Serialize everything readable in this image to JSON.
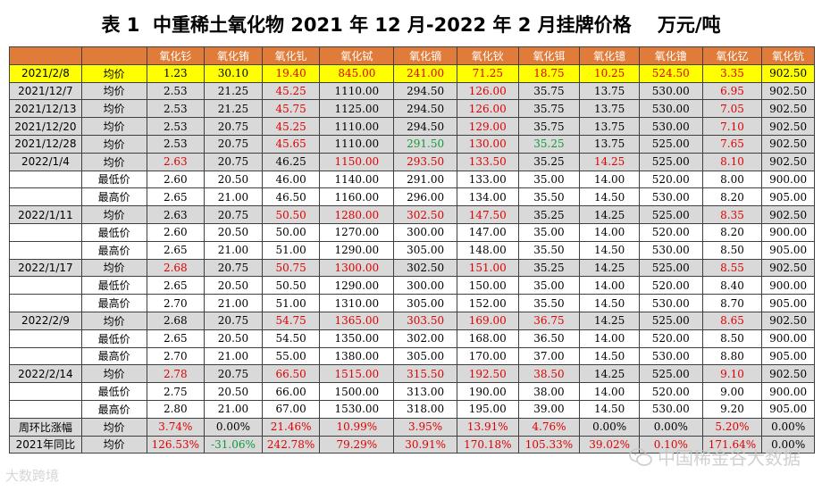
{
  "title": "表 1  中重稀土氧化物 2021 年 12 月-2022 年 2 月挂牌价格    万元/吨",
  "header": [
    "",
    "",
    "氧化钐",
    "氧化铕",
    "氧化钆",
    "氧化铽",
    "氧化镝",
    "氧化钬",
    "氧化铒",
    "氧化镱",
    "氧化镥",
    "氧化钇",
    "氧化钪"
  ],
  "rows": [
    {
      "style": "hl",
      "cells": [
        "2021/2/8",
        "均价",
        "1.23",
        "30.10",
        "19.40",
        "845.00",
        "241.00",
        "71.25",
        "18.75",
        "10.25",
        "524.50",
        "3.35",
        "902.50"
      ],
      "colors": [
        "",
        "",
        "",
        "",
        "up",
        "up",
        "up",
        "up",
        "up",
        "up",
        "up",
        "up",
        ""
      ]
    },
    {
      "style": "gray",
      "cells": [
        "2021/12/7",
        "均价",
        "2.53",
        "21.25",
        "45.25",
        "1110.00",
        "294.50",
        "126.00",
        "35.75",
        "13.75",
        "530.00",
        "6.95",
        "902.50"
      ],
      "colors": [
        "",
        "",
        "",
        "",
        "up",
        "",
        "",
        "up",
        "",
        "",
        "",
        "up",
        ""
      ]
    },
    {
      "style": "gray",
      "cells": [
        "2021/12/13",
        "均价",
        "2.53",
        "21.25",
        "45.75",
        "1125.00",
        "294.50",
        "126.00",
        "35.75",
        "13.75",
        "530.00",
        "7.05",
        "902.50"
      ],
      "colors": [
        "",
        "",
        "",
        "",
        "up",
        "",
        "",
        "up",
        "",
        "",
        "",
        "up",
        ""
      ]
    },
    {
      "style": "gray",
      "cells": [
        "2021/12/20",
        "均价",
        "2.53",
        "20.75",
        "45.25",
        "1110.00",
        "294.50",
        "129.00",
        "35.75",
        "13.75",
        "530.00",
        "7.10",
        "902.50"
      ],
      "colors": [
        "",
        "",
        "",
        "",
        "up",
        "",
        "",
        "up",
        "",
        "",
        "",
        "up",
        ""
      ]
    },
    {
      "style": "gray",
      "cells": [
        "2021/12/28",
        "均价",
        "2.53",
        "20.75",
        "45.65",
        "1110.00",
        "291.50",
        "130.00",
        "35.25",
        "13.75",
        "525.00",
        "7.65",
        "902.50"
      ],
      "colors": [
        "",
        "",
        "",
        "",
        "up",
        "",
        "down",
        "up",
        "down",
        "",
        "",
        "up",
        ""
      ]
    },
    {
      "style": "gray",
      "cells": [
        "2022/1/4",
        "均价",
        "2.63",
        "20.75",
        "46.25",
        "1150.00",
        "293.50",
        "133.50",
        "35.25",
        "14.25",
        "525.00",
        "8.10",
        "902.50"
      ],
      "colors": [
        "",
        "",
        "up",
        "",
        "",
        "up",
        "up",
        "up",
        "",
        "up",
        "",
        "up",
        ""
      ]
    },
    {
      "style": "white",
      "cells": [
        "",
        "最低价",
        "2.60",
        "20.50",
        "46.00",
        "1140.00",
        "291.00",
        "133.00",
        "35.00",
        "14.00",
        "520.00",
        "8.00",
        "900.00"
      ],
      "colors": [
        "",
        "",
        "",
        "",
        "",
        "",
        "",
        "",
        "",
        "",
        "",
        "",
        ""
      ]
    },
    {
      "style": "white",
      "cells": [
        "",
        "最高价",
        "2.65",
        "21.00",
        "46.50",
        "1160.00",
        "296.00",
        "134.00",
        "35.50",
        "14.50",
        "530.00",
        "8.20",
        "905.00"
      ],
      "colors": [
        "",
        "",
        "",
        "",
        "",
        "",
        "",
        "",
        "",
        "",
        "",
        "",
        ""
      ]
    },
    {
      "style": "gray",
      "cells": [
        "2022/1/11",
        "均价",
        "2.63",
        "20.75",
        "50.50",
        "1280.00",
        "302.50",
        "147.50",
        "35.25",
        "14.25",
        "525.00",
        "8.35",
        "902.50"
      ],
      "colors": [
        "",
        "",
        "",
        "",
        "up",
        "up",
        "up",
        "up",
        "",
        "",
        "",
        "up",
        ""
      ]
    },
    {
      "style": "white",
      "cells": [
        "",
        "最低价",
        "2.60",
        "20.50",
        "50.00",
        "1270.00",
        "300.00",
        "147.00",
        "35.00",
        "14.00",
        "520.00",
        "8.20",
        "900.00"
      ],
      "colors": [
        "",
        "",
        "",
        "",
        "",
        "",
        "",
        "",
        "",
        "",
        "",
        "",
        ""
      ]
    },
    {
      "style": "white",
      "cells": [
        "",
        "最高价",
        "2.65",
        "21.00",
        "51.00",
        "1290.00",
        "305.00",
        "148.00",
        "35.50",
        "14.50",
        "530.00",
        "8.50",
        "905.00"
      ],
      "colors": [
        "",
        "",
        "",
        "",
        "",
        "",
        "",
        "",
        "",
        "",
        "",
        "",
        ""
      ]
    },
    {
      "style": "gray",
      "cells": [
        "2022/1/17",
        "均价",
        "2.68",
        "20.75",
        "50.75",
        "1300.00",
        "302.50",
        "151.00",
        "35.25",
        "14.25",
        "525.00",
        "8.55",
        "902.50"
      ],
      "colors": [
        "",
        "",
        "up",
        "",
        "up",
        "up",
        "",
        "up",
        "",
        "",
        "",
        "up",
        ""
      ]
    },
    {
      "style": "white",
      "cells": [
        "",
        "最低价",
        "2.65",
        "20.50",
        "50.50",
        "1290.00",
        "300.00",
        "150.00",
        "35.00",
        "14.00",
        "520.00",
        "8.40",
        "900.00"
      ],
      "colors": [
        "",
        "",
        "",
        "",
        "",
        "",
        "",
        "",
        "",
        "",
        "",
        "",
        ""
      ]
    },
    {
      "style": "white",
      "cells": [
        "",
        "最高价",
        "2.70",
        "21.00",
        "51.00",
        "1310.00",
        "305.00",
        "152.00",
        "35.50",
        "14.50",
        "530.00",
        "8.70",
        "905.00"
      ],
      "colors": [
        "",
        "",
        "",
        "",
        "",
        "",
        "",
        "",
        "",
        "",
        "",
        "",
        ""
      ]
    },
    {
      "style": "gray",
      "cells": [
        "2022/2/9",
        "均价",
        "2.68",
        "20.75",
        "54.75",
        "1365.00",
        "303.50",
        "169.00",
        "36.75",
        "14.25",
        "525.00",
        "8.65",
        "902.50"
      ],
      "colors": [
        "",
        "",
        "",
        "",
        "up",
        "up",
        "up",
        "up",
        "up",
        "",
        "",
        "up",
        ""
      ]
    },
    {
      "style": "white",
      "cells": [
        "",
        "最低价",
        "2.65",
        "20.50",
        "54.50",
        "1350.00",
        "302.00",
        "168.00",
        "36.50",
        "14.00",
        "520.00",
        "8.50",
        "900.00"
      ],
      "colors": [
        "",
        "",
        "",
        "",
        "",
        "",
        "",
        "",
        "",
        "",
        "",
        "",
        ""
      ]
    },
    {
      "style": "white",
      "cells": [
        "",
        "最高价",
        "2.70",
        "21.00",
        "55.00",
        "1380.00",
        "305.00",
        "170.00",
        "37.00",
        "14.50",
        "530.00",
        "8.80",
        "905.00"
      ],
      "colors": [
        "",
        "",
        "",
        "",
        "",
        "",
        "",
        "",
        "",
        "",
        "",
        "",
        ""
      ]
    },
    {
      "style": "gray",
      "cells": [
        "2022/2/14",
        "均价",
        "2.78",
        "20.75",
        "66.50",
        "1515.00",
        "315.50",
        "192.50",
        "38.50",
        "14.25",
        "525.00",
        "9.10",
        "902.50"
      ],
      "colors": [
        "",
        "",
        "up",
        "",
        "up",
        "up",
        "up",
        "up",
        "up",
        "",
        "",
        "up",
        ""
      ]
    },
    {
      "style": "white",
      "cells": [
        "",
        "最低价",
        "2.75",
        "20.50",
        "66.00",
        "1500.00",
        "313.00",
        "190.00",
        "38.00",
        "14.00",
        "520.00",
        "9.00",
        "900.00"
      ],
      "colors": [
        "",
        "",
        "",
        "",
        "",
        "",
        "",
        "",
        "",
        "",
        "",
        "",
        ""
      ]
    },
    {
      "style": "white",
      "cells": [
        "",
        "最高价",
        "2.80",
        "21.00",
        "67.00",
        "1530.00",
        "318.00",
        "195.00",
        "39.00",
        "14.50",
        "530.00",
        "9.20",
        "905.00"
      ],
      "colors": [
        "",
        "",
        "",
        "",
        "",
        "",
        "",
        "",
        "",
        "",
        "",
        "",
        ""
      ]
    },
    {
      "style": "gray",
      "cells": [
        "周环比涨幅",
        "均价",
        "3.74%",
        "0.00%",
        "21.46%",
        "10.99%",
        "3.95%",
        "13.91%",
        "4.76%",
        "0.00%",
        "0.00%",
        "5.20%",
        "0.00%"
      ],
      "colors": [
        "",
        "",
        "up",
        "",
        "up",
        "up",
        "up",
        "up",
        "up",
        "",
        "",
        "up",
        ""
      ]
    },
    {
      "style": "gray",
      "cells": [
        "2021年同比",
        "均价",
        "126.53%",
        "-31.06%",
        "242.78%",
        "79.29%",
        "30.91%",
        "170.18%",
        "105.33%",
        "39.02%",
        "0.10%",
        "171.64%",
        "0.00%"
      ],
      "colors": [
        "",
        "",
        "up",
        "down",
        "up",
        "up",
        "up",
        "up",
        "up",
        "up",
        "up",
        "up",
        ""
      ]
    }
  ],
  "watermarks": {
    "left": "大数跨境",
    "right": "中国稀金谷大数据"
  },
  "icons": {
    "wechat": "wechat-icon"
  }
}
